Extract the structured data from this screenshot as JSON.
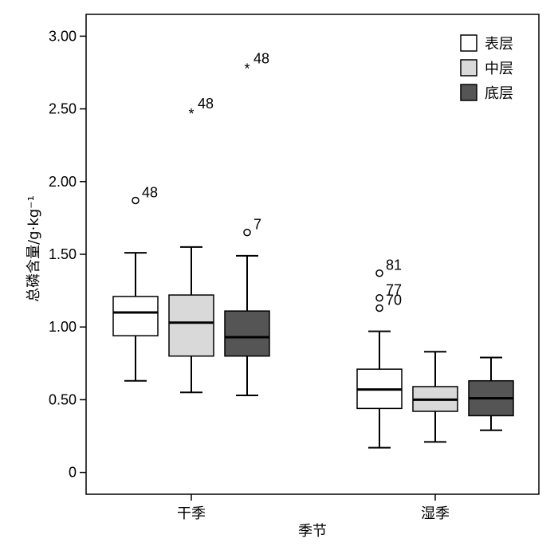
{
  "chart_data": {
    "type": "boxplot",
    "xlabel": "季节",
    "ylabel": "总磷含量/g·kg⁻¹",
    "ylim": [
      -0.15,
      3.15
    ],
    "yticks": [
      "0",
      "0.50",
      "1.00",
      "1.50",
      "2.00",
      "2.50",
      "3.00"
    ],
    "ytick_values": [
      0,
      0.5,
      1.0,
      1.5,
      2.0,
      2.5,
      3.0
    ],
    "categories": [
      "干季",
      "湿季"
    ],
    "legend_position": "top-right",
    "grid": false,
    "series": [
      {
        "name": "表层",
        "color": "#ffffff",
        "median_color": "#000000",
        "boxes": [
          {
            "min": 0.63,
            "q1": 0.94,
            "median": 1.1,
            "q3": 1.21,
            "max": 1.51,
            "outliers": [
              {
                "value": 1.87,
                "marker": "circle",
                "label": "48"
              }
            ]
          },
          {
            "min": 0.17,
            "q1": 0.44,
            "median": 0.57,
            "q3": 0.71,
            "max": 0.97,
            "outliers": [
              {
                "value": 1.37,
                "marker": "circle",
                "label": "81"
              },
              {
                "value": 1.2,
                "marker": "circle",
                "label": "77"
              },
              {
                "value": 1.13,
                "marker": "circle",
                "label": "70"
              }
            ]
          }
        ]
      },
      {
        "name": "中层",
        "color": "#d9d9d9",
        "median_color": "#000000",
        "boxes": [
          {
            "min": 0.55,
            "q1": 0.8,
            "median": 1.03,
            "q3": 1.22,
            "max": 1.55,
            "outliers": [
              {
                "value": 2.48,
                "marker": "star",
                "label": "48"
              }
            ]
          },
          {
            "min": 0.21,
            "q1": 0.42,
            "median": 0.5,
            "q3": 0.59,
            "max": 0.83,
            "outliers": []
          }
        ]
      },
      {
        "name": "底层",
        "color": "#555555",
        "median_color": "#000000",
        "boxes": [
          {
            "min": 0.53,
            "q1": 0.8,
            "median": 0.93,
            "q3": 1.11,
            "max": 1.49,
            "outliers": [
              {
                "value": 2.79,
                "marker": "star",
                "label": "48"
              },
              {
                "value": 1.65,
                "marker": "circle",
                "label": "7"
              }
            ]
          },
          {
            "min": 0.29,
            "q1": 0.39,
            "median": 0.51,
            "q3": 0.63,
            "max": 0.79,
            "outliers": []
          }
        ]
      }
    ]
  }
}
